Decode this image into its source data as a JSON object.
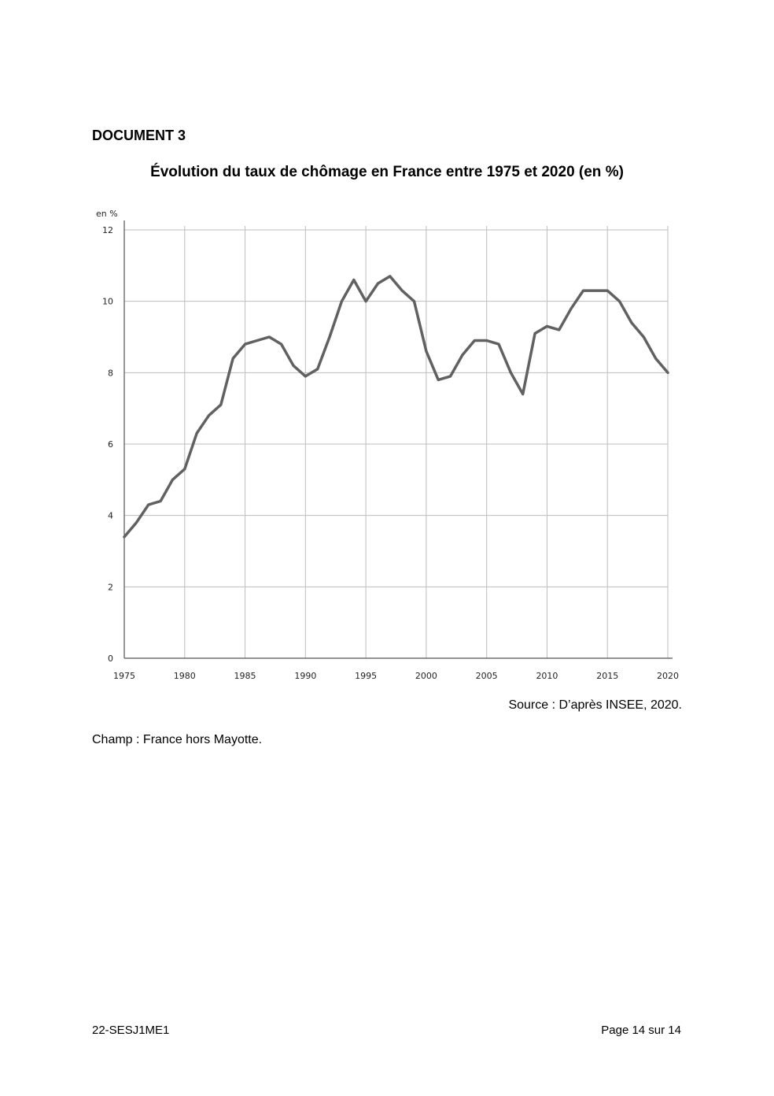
{
  "document_label": "DOCUMENT 3",
  "source": "Source : D’après INSEE, 2020.",
  "champ": "Champ : France hors Mayotte.",
  "footer": {
    "code": "22-SESJ1ME1",
    "page": "Page 14 sur 14"
  },
  "colors": {
    "line": "#616161",
    "grid": "#bdbdbd",
    "axis": "#555555"
  },
  "chart_data": {
    "type": "line",
    "title": "Évolution du taux de chômage en France entre 1975 et 2020 (en %)",
    "ylabel": "en %",
    "xlabel": "",
    "xlim": [
      1975,
      2020
    ],
    "ylim": [
      0,
      12
    ],
    "x_ticks": [
      1975,
      1980,
      1985,
      1990,
      1995,
      2000,
      2005,
      2010,
      2015,
      2020
    ],
    "y_ticks": [
      0,
      2,
      4,
      6,
      8,
      10,
      12
    ],
    "grid": true,
    "legend": "none",
    "series": [
      {
        "x": [
          1975,
          1976,
          1977,
          1978,
          1979,
          1980,
          1981,
          1982,
          1983,
          1984,
          1985,
          1986,
          1987,
          1988,
          1989,
          1990,
          1991,
          1992,
          1993,
          1994,
          1995,
          1996,
          1997,
          1998,
          1999,
          2000,
          2001,
          2002,
          2003,
          2004,
          2005,
          2006,
          2007,
          2008,
          2009,
          2010,
          2011,
          2012,
          2013,
          2014,
          2015,
          2016,
          2017,
          2018,
          2019,
          2020
        ],
        "values": [
          3.4,
          3.8,
          4.3,
          4.4,
          5.0,
          5.3,
          6.3,
          6.8,
          7.1,
          8.4,
          8.8,
          8.9,
          9.0,
          8.8,
          8.2,
          7.9,
          8.1,
          9.0,
          10.0,
          10.6,
          10.0,
          10.5,
          10.7,
          10.3,
          10.0,
          8.6,
          7.8,
          7.9,
          8.5,
          8.9,
          8.9,
          8.8,
          8.0,
          7.4,
          9.1,
          9.3,
          9.2,
          9.8,
          10.3,
          10.3,
          10.3,
          10.0,
          9.4,
          9.0,
          8.4,
          8.0
        ]
      }
    ]
  }
}
